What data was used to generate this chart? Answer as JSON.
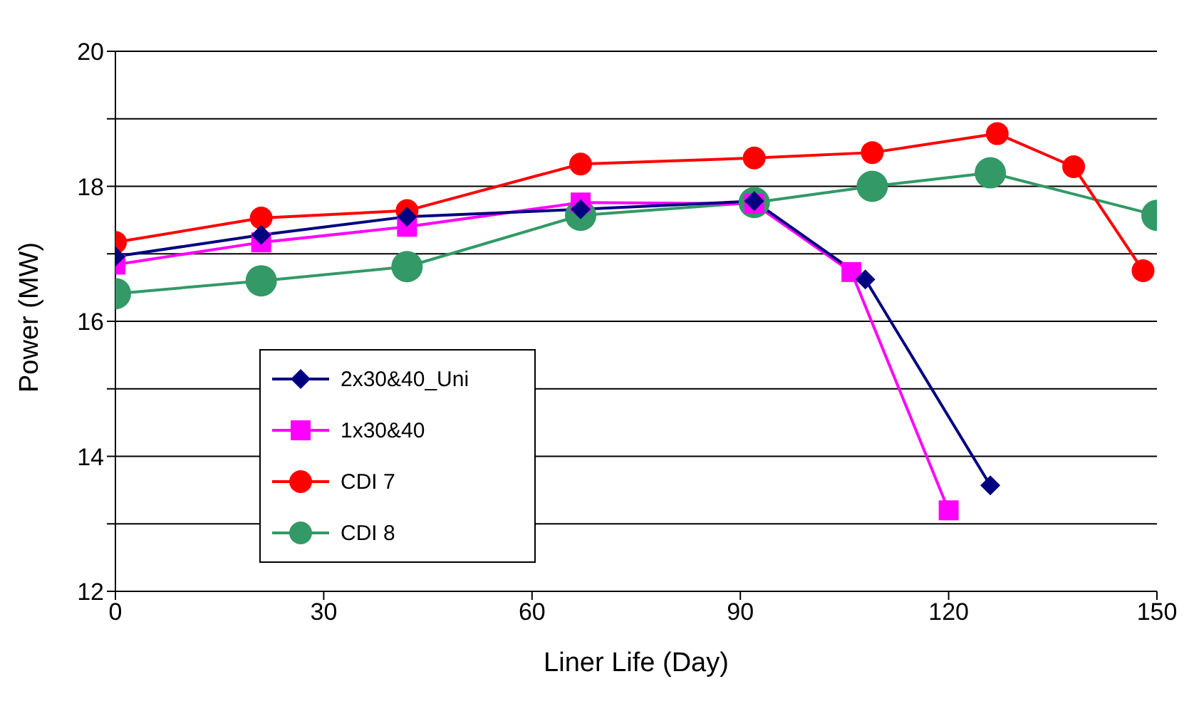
{
  "chart_data": {
    "type": "line",
    "xlabel": "Liner Life (Day)",
    "ylabel": "Power (MW)",
    "xlim": [
      0,
      150
    ],
    "xticks": [
      0,
      30,
      60,
      90,
      120,
      150
    ],
    "ylim": [
      12,
      20
    ],
    "yticks": [
      12,
      {
        "value": 13,
        "label": null
      },
      14,
      {
        "value": 15,
        "label": null
      },
      16,
      {
        "value": 17,
        "label": null
      },
      18,
      {
        "value": 19,
        "label": null
      },
      20
    ],
    "grid": "y",
    "legend": "bottom left",
    "series": [
      {
        "name": "2x30&40_Uni",
        "color": "#000080",
        "marker": "diamond",
        "x": [
          0,
          21,
          42,
          67,
          92,
          108,
          126
        ],
        "values": [
          16.96,
          17.28,
          17.55,
          17.66,
          17.78,
          16.62,
          13.57
        ]
      },
      {
        "name": "1x30&40",
        "color": "#ff00ff",
        "marker": "square",
        "x": [
          0,
          21,
          42,
          67,
          92,
          106,
          120
        ],
        "values": [
          16.84,
          17.17,
          17.4,
          17.76,
          17.74,
          16.73,
          13.2
        ]
      },
      {
        "name": "CDI 7",
        "color": "#ff0000",
        "marker": "circle",
        "x": [
          0,
          21,
          42,
          67,
          92,
          109,
          127,
          138,
          148
        ],
        "values": [
          17.17,
          17.53,
          17.64,
          18.33,
          18.42,
          18.5,
          18.78,
          18.29,
          16.75
        ]
      },
      {
        "name": "CDI 8",
        "color": "#339966",
        "marker": "circle",
        "x": [
          0,
          21,
          42,
          67,
          92,
          109,
          126,
          150
        ],
        "values": [
          16.41,
          16.6,
          16.81,
          17.57,
          17.76,
          18.0,
          18.2,
          17.57
        ]
      }
    ]
  }
}
